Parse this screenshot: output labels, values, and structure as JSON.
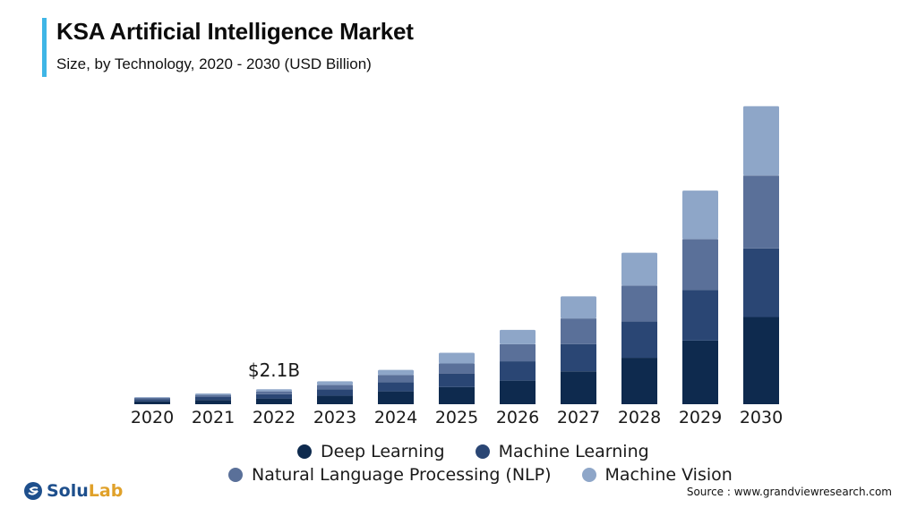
{
  "header": {
    "title": "KSA Artificial Intelligence Market",
    "subtitle": "Size, by Technology, 2020 - 2030 (USD Billion)"
  },
  "annotation": {
    "label": "$2.1B",
    "year": "2022"
  },
  "legend": {
    "items": [
      {
        "label": "Deep Learning",
        "color": "#0e2a4e"
      },
      {
        "label": "Machine Learning",
        "color": "#2a4674"
      },
      {
        "label": "Natural Language Processing (NLP)",
        "color": "#5a7099"
      },
      {
        "label": "Machine Vision",
        "color": "#8ea6c8"
      }
    ]
  },
  "logo": {
    "text_solu": "Solu",
    "text_lab": "Lab",
    "color_solu": "#1e4f8c",
    "color_lab": "#e0a12a"
  },
  "source": {
    "text": "Source : www.grandviewresearch.com"
  },
  "chart_data": {
    "type": "bar",
    "stacked": true,
    "title": "KSA Artificial Intelligence Market",
    "subtitle": "Size, by Technology, 2020 - 2030 (USD Billion)",
    "categories": [
      "2020",
      "2021",
      "2022",
      "2023",
      "2024",
      "2025",
      "2026",
      "2027",
      "2028",
      "2029",
      "2030"
    ],
    "series": [
      {
        "name": "Deep Learning",
        "color": "#0e2a4e",
        "values": [
          0.4,
          0.6,
          0.8,
          1.2,
          1.8,
          2.4,
          3.3,
          4.6,
          6.5,
          8.9,
          12.2
        ]
      },
      {
        "name": "Machine Learning",
        "color": "#2a4674",
        "values": [
          0.3,
          0.4,
          0.6,
          0.9,
          1.3,
          1.9,
          2.7,
          3.8,
          5.1,
          7.1,
          9.6
        ]
      },
      {
        "name": "Natural Language Processing (NLP)",
        "color": "#5a7099",
        "values": [
          0.2,
          0.3,
          0.4,
          0.6,
          1.0,
          1.4,
          2.4,
          3.6,
          5.0,
          7.1,
          10.2
        ]
      },
      {
        "name": "Machine Vision",
        "color": "#8ea6c8",
        "values": [
          0.1,
          0.2,
          0.3,
          0.5,
          0.7,
          1.5,
          2.0,
          3.1,
          4.6,
          6.8,
          9.7
        ]
      }
    ],
    "ylim": [
      0,
      42.3
    ],
    "xlabel": "",
    "ylabel": "",
    "data_labels": [
      {
        "category": "2022",
        "text": "$2.1B"
      }
    ],
    "legend_position": "bottom",
    "grid": false
  }
}
